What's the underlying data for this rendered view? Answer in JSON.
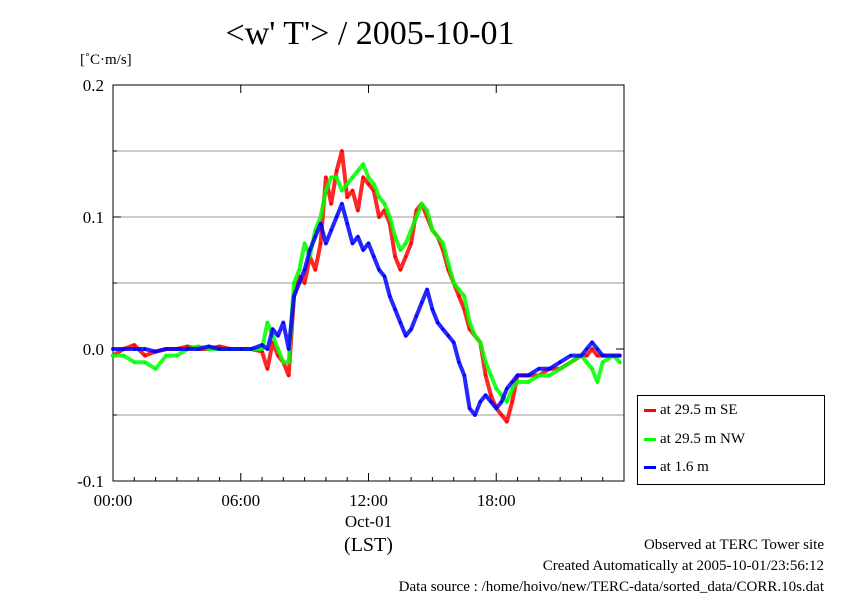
{
  "title": "<w' T'> / 2005-10-01",
  "unit_label": "[˚C·m/s]",
  "footer": {
    "line1": "Observed at TERC Tower site",
    "line2": "Created Automatically at 2005-10-01/23:56:12",
    "line3": "Data source : /home/hoivo/new/TERC-data/sorted_data/CORR.10s.dat"
  },
  "legend": [
    {
      "label": "at 29.5 m SE",
      "color": "#ff0000"
    },
    {
      "label": "at 29.5 m NW",
      "color": "#00ff00"
    },
    {
      "label": "at 1.6 m",
      "color": "#0000ff"
    }
  ],
  "chart_data": {
    "type": "line",
    "title": "<w' T'> / 2005-10-01",
    "xlabel": "(LST)",
    "ylabel": "[˚C·m/s]",
    "xlim": [
      0,
      24
    ],
    "ylim": [
      -0.1,
      0.2
    ],
    "x_ticks": [
      {
        "value": 0,
        "label": "00:00"
      },
      {
        "value": 6,
        "label": "06:00"
      },
      {
        "value": 12,
        "label": "12:00"
      },
      {
        "value": 18,
        "label": "18:00"
      }
    ],
    "date_label": "Oct-01",
    "y_ticks": [
      {
        "value": 0.2,
        "label": "0.2"
      },
      {
        "value": 0.1,
        "label": "0.1"
      },
      {
        "value": 0.0,
        "label": "0.0"
      },
      {
        "value": -0.1,
        "label": "-0.1"
      }
    ],
    "grid_y": [
      0.15,
      0.1,
      0.05,
      -0.05
    ],
    "series": [
      {
        "name": "at 29.5 m SE",
        "color": "#ff0000",
        "x": [
          0,
          0.5,
          1,
          1.5,
          2,
          2.5,
          3,
          3.5,
          4,
          4.5,
          5,
          5.5,
          6,
          6.5,
          7,
          7.25,
          7.5,
          7.75,
          8,
          8.25,
          8.5,
          8.75,
          9,
          9.25,
          9.5,
          9.75,
          10,
          10.25,
          10.5,
          10.75,
          11,
          11.25,
          11.5,
          11.75,
          12,
          12.25,
          12.5,
          12.75,
          13,
          13.25,
          13.5,
          13.75,
          14,
          14.25,
          14.5,
          14.75,
          15,
          15.25,
          15.5,
          15.75,
          16,
          16.25,
          16.5,
          16.75,
          17,
          17.25,
          17.5,
          17.75,
          18,
          18.25,
          18.5,
          18.75,
          19,
          19.5,
          20,
          20.5,
          21,
          21.5,
          22,
          22.25,
          22.5,
          22.75,
          23,
          23.5,
          23.8
        ],
        "y": [
          -0.005,
          0.0,
          0.003,
          -0.005,
          -0.002,
          0.0,
          0.0,
          0.002,
          0.0,
          0.0,
          0.002,
          0.0,
          0.0,
          0.0,
          -0.002,
          -0.015,
          0.005,
          -0.005,
          -0.01,
          -0.02,
          0.04,
          0.055,
          0.05,
          0.07,
          0.06,
          0.08,
          0.13,
          0.11,
          0.135,
          0.15,
          0.115,
          0.12,
          0.105,
          0.13,
          0.125,
          0.12,
          0.1,
          0.105,
          0.095,
          0.07,
          0.06,
          0.07,
          0.08,
          0.105,
          0.11,
          0.1,
          0.09,
          0.085,
          0.075,
          0.06,
          0.05,
          0.04,
          0.03,
          0.015,
          0.01,
          0.005,
          -0.02,
          -0.035,
          -0.045,
          -0.05,
          -0.055,
          -0.04,
          -0.02,
          -0.02,
          -0.02,
          -0.015,
          -0.015,
          -0.01,
          -0.005,
          -0.005,
          0.0,
          -0.005,
          -0.005,
          -0.005,
          -0.005
        ]
      },
      {
        "name": "at 29.5 m NW",
        "color": "#00ff00",
        "x": [
          0,
          0.5,
          1,
          1.5,
          2,
          2.5,
          3,
          3.5,
          4,
          4.5,
          5,
          5.5,
          6,
          6.5,
          7,
          7.25,
          7.5,
          7.75,
          8,
          8.25,
          8.5,
          8.75,
          9,
          9.25,
          9.5,
          9.75,
          10,
          10.25,
          10.5,
          10.75,
          11,
          11.25,
          11.5,
          11.75,
          12,
          12.25,
          12.5,
          12.75,
          13,
          13.25,
          13.5,
          13.75,
          14,
          14.25,
          14.5,
          14.75,
          15,
          15.25,
          15.5,
          15.75,
          16,
          16.25,
          16.5,
          16.75,
          17,
          17.25,
          17.5,
          17.75,
          18,
          18.25,
          18.5,
          18.75,
          19,
          19.5,
          20,
          20.5,
          21,
          21.5,
          22,
          22.25,
          22.5,
          22.75,
          23,
          23.5,
          23.8
        ],
        "y": [
          -0.005,
          -0.005,
          -0.01,
          -0.01,
          -0.015,
          -0.005,
          -0.005,
          0.0,
          0.002,
          0.0,
          0.0,
          0.0,
          0.0,
          0.0,
          0.0,
          0.02,
          0.01,
          0.0,
          -0.01,
          -0.01,
          0.05,
          0.06,
          0.08,
          0.07,
          0.09,
          0.1,
          0.12,
          0.13,
          0.13,
          0.12,
          0.125,
          0.13,
          0.135,
          0.14,
          0.13,
          0.125,
          0.115,
          0.11,
          0.1,
          0.085,
          0.075,
          0.08,
          0.09,
          0.1,
          0.11,
          0.105,
          0.09,
          0.085,
          0.08,
          0.065,
          0.05,
          0.045,
          0.04,
          0.02,
          0.01,
          0.005,
          -0.01,
          -0.02,
          -0.03,
          -0.035,
          -0.04,
          -0.03,
          -0.025,
          -0.025,
          -0.02,
          -0.02,
          -0.015,
          -0.01,
          -0.005,
          -0.01,
          -0.015,
          -0.025,
          -0.01,
          -0.005,
          -0.01
        ]
      },
      {
        "name": "at 1.6 m",
        "color": "#0000ff",
        "x": [
          0,
          0.5,
          1,
          1.5,
          2,
          2.5,
          3,
          3.5,
          4,
          4.5,
          5,
          5.5,
          6,
          6.5,
          7,
          7.25,
          7.5,
          7.75,
          8,
          8.25,
          8.5,
          8.75,
          9,
          9.25,
          9.5,
          9.75,
          10,
          10.25,
          10.5,
          10.75,
          11,
          11.25,
          11.5,
          11.75,
          12,
          12.25,
          12.5,
          12.75,
          13,
          13.25,
          13.5,
          13.75,
          14,
          14.25,
          14.5,
          14.75,
          15,
          15.25,
          15.5,
          15.75,
          16,
          16.25,
          16.5,
          16.75,
          17,
          17.25,
          17.5,
          17.75,
          18,
          18.25,
          18.5,
          18.75,
          19,
          19.5,
          20,
          20.5,
          21,
          21.5,
          22,
          22.25,
          22.5,
          22.75,
          23,
          23.5,
          23.8
        ],
        "y": [
          0.0,
          0.0,
          0.0,
          0.0,
          -0.002,
          0.0,
          0.0,
          0.0,
          0.0,
          0.002,
          0.0,
          0.0,
          0.0,
          0.0,
          0.003,
          0.0,
          0.015,
          0.01,
          0.02,
          0.0,
          0.04,
          0.05,
          0.06,
          0.075,
          0.085,
          0.095,
          0.08,
          0.09,
          0.1,
          0.11,
          0.095,
          0.08,
          0.085,
          0.075,
          0.08,
          0.07,
          0.06,
          0.055,
          0.04,
          0.03,
          0.02,
          0.01,
          0.015,
          0.025,
          0.035,
          0.045,
          0.03,
          0.02,
          0.015,
          0.01,
          0.005,
          -0.01,
          -0.02,
          -0.045,
          -0.05,
          -0.04,
          -0.035,
          -0.04,
          -0.045,
          -0.04,
          -0.03,
          -0.025,
          -0.02,
          -0.02,
          -0.015,
          -0.015,
          -0.01,
          -0.005,
          -0.005,
          0.0,
          0.005,
          0.0,
          -0.005,
          -0.005,
          -0.005
        ]
      }
    ]
  }
}
